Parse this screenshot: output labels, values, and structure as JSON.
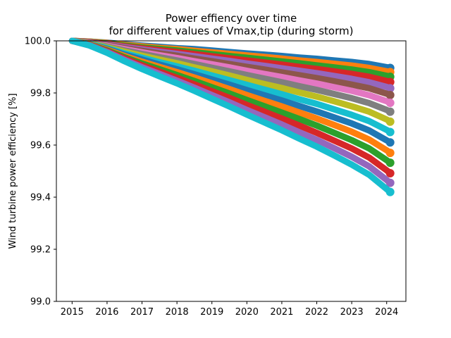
{
  "chart_data": {
    "type": "scatter",
    "title": "Power effiency over time",
    "subtitle": "for different values of Vmax,tip (during storm)",
    "xlabel": "",
    "ylabel": "Wind turbine power efficiency [%]",
    "xlim": [
      2014.55,
      2024.55
    ],
    "ylim": [
      99.0,
      100.0
    ],
    "xticks": [
      {
        "value": 2015,
        "label": "2015"
      },
      {
        "value": 2016,
        "label": "2016"
      },
      {
        "value": 2017,
        "label": "2017"
      },
      {
        "value": 2018,
        "label": "2018"
      },
      {
        "value": 2019,
        "label": "2019"
      },
      {
        "value": 2020,
        "label": "2020"
      },
      {
        "value": 2021,
        "label": "2021"
      },
      {
        "value": 2022,
        "label": "2022"
      },
      {
        "value": 2023,
        "label": "2023"
      },
      {
        "value": 2024,
        "label": "2024"
      }
    ],
    "yticks": [
      {
        "value": 99.0,
        "label": "99.0"
      },
      {
        "value": 99.2,
        "label": "99.2"
      },
      {
        "value": 99.4,
        "label": "99.4"
      },
      {
        "value": 99.6,
        "label": "99.6"
      },
      {
        "value": 99.8,
        "label": "99.8"
      },
      {
        "value": 100.0,
        "label": "100.0"
      }
    ],
    "grid": false,
    "legend": "none",
    "x": [
      2015.0,
      2015.5,
      2016.0,
      2016.5,
      2017.0,
      2017.5,
      2018.0,
      2018.5,
      2019.0,
      2019.5,
      2020.0,
      2020.5,
      2021.0,
      2021.5,
      2022.0,
      2022.5,
      2023.0,
      2023.5,
      2024.0,
      2024.1
    ],
    "series": [
      {
        "color": "#1f77b4",
        "values": [
          100.0,
          99.997,
          99.993,
          99.987,
          99.982,
          99.977,
          99.972,
          99.968,
          99.963,
          99.957,
          99.952,
          99.947,
          99.942,
          99.936,
          99.931,
          99.925,
          99.919,
          99.911,
          99.899,
          99.896
        ]
      },
      {
        "color": "#ff7f0e",
        "values": [
          100.0,
          99.997,
          99.992,
          99.985,
          99.979,
          99.973,
          99.968,
          99.962,
          99.956,
          99.95,
          99.944,
          99.938,
          99.932,
          99.925,
          99.919,
          99.912,
          99.905,
          99.896,
          99.883,
          99.88
        ]
      },
      {
        "color": "#2ca02c",
        "values": [
          100.0,
          99.996,
          99.99,
          99.982,
          99.975,
          99.969,
          99.963,
          99.956,
          99.949,
          99.942,
          99.935,
          99.928,
          99.921,
          99.914,
          99.906,
          99.898,
          99.89,
          99.88,
          99.866,
          99.862
        ]
      },
      {
        "color": "#d62728",
        "values": [
          100.0,
          99.995,
          99.988,
          99.979,
          99.971,
          99.964,
          99.957,
          99.949,
          99.941,
          99.933,
          99.925,
          99.917,
          99.909,
          99.9,
          99.892,
          99.883,
          99.873,
          99.862,
          99.846,
          99.842
        ]
      },
      {
        "color": "#9467bd",
        "values": [
          100.0,
          99.994,
          99.986,
          99.976,
          99.967,
          99.958,
          99.95,
          99.941,
          99.932,
          99.923,
          99.913,
          99.904,
          99.895,
          99.885,
          99.876,
          99.865,
          99.854,
          99.841,
          99.823,
          99.818
        ]
      },
      {
        "color": "#8c564b",
        "values": [
          100.0,
          99.993,
          99.984,
          99.972,
          99.962,
          99.952,
          99.943,
          99.932,
          99.922,
          99.911,
          99.9,
          99.89,
          99.879,
          99.868,
          99.857,
          99.845,
          99.832,
          99.818,
          99.797,
          99.792
        ]
      },
      {
        "color": "#e377c2",
        "values": [
          100.0,
          99.992,
          99.981,
          99.968,
          99.956,
          99.945,
          99.934,
          99.922,
          99.91,
          99.898,
          99.885,
          99.873,
          99.861,
          99.848,
          99.836,
          99.822,
          99.808,
          99.791,
          99.768,
          99.762
        ]
      },
      {
        "color": "#7f7f7f",
        "values": [
          100.0,
          99.991,
          99.978,
          99.963,
          99.95,
          99.937,
          99.925,
          99.911,
          99.897,
          99.883,
          99.869,
          99.855,
          99.841,
          99.826,
          99.812,
          99.796,
          99.78,
          99.761,
          99.735,
          99.728
        ]
      },
      {
        "color": "#bcbd22",
        "values": [
          100.0,
          99.99,
          99.975,
          99.958,
          99.943,
          99.928,
          99.914,
          99.898,
          99.883,
          99.867,
          99.85,
          99.834,
          99.819,
          99.802,
          99.786,
          99.768,
          99.749,
          99.728,
          99.698,
          99.69
        ]
      },
      {
        "color": "#17becf",
        "values": [
          100.0,
          99.988,
          99.972,
          99.952,
          99.935,
          99.918,
          99.902,
          99.885,
          99.867,
          99.849,
          99.831,
          99.813,
          99.795,
          99.776,
          99.758,
          99.737,
          99.716,
          99.692,
          99.658,
          99.65
        ]
      },
      {
        "color": "#1f77b4",
        "values": [
          100.0,
          99.987,
          99.969,
          99.947,
          99.928,
          99.909,
          99.891,
          99.872,
          99.852,
          99.832,
          99.811,
          99.791,
          99.771,
          99.75,
          99.729,
          99.706,
          99.683,
          99.656,
          99.618,
          99.61
        ]
      },
      {
        "color": "#ff7f0e",
        "values": [
          100.0,
          99.986,
          99.966,
          99.942,
          99.92,
          99.9,
          99.88,
          99.859,
          99.837,
          99.815,
          99.792,
          99.77,
          99.748,
          99.725,
          99.702,
          99.677,
          99.651,
          99.621,
          99.58,
          99.57
        ]
      },
      {
        "color": "#2ca02c",
        "values": [
          100.0,
          99.985,
          99.963,
          99.937,
          99.913,
          99.891,
          99.869,
          99.846,
          99.822,
          99.798,
          99.773,
          99.749,
          99.725,
          99.7,
          99.675,
          99.647,
          99.619,
          99.587,
          99.542,
          99.532
        ]
      },
      {
        "color": "#d62728",
        "values": [
          100.0,
          99.984,
          99.96,
          99.932,
          99.906,
          99.882,
          99.858,
          99.833,
          99.807,
          99.781,
          99.754,
          99.728,
          99.702,
          99.675,
          99.647,
          99.617,
          99.587,
          99.552,
          99.503,
          99.492
        ]
      },
      {
        "color": "#9467bd",
        "values": [
          100.0,
          99.983,
          99.957,
          99.927,
          99.899,
          99.873,
          99.847,
          99.82,
          99.792,
          99.764,
          99.735,
          99.707,
          99.679,
          99.649,
          99.62,
          99.588,
          99.555,
          99.518,
          99.466,
          99.455
        ]
      },
      {
        "color": "#17becf",
        "values": [
          100.0,
          99.982,
          99.954,
          99.922,
          99.892,
          99.864,
          99.837,
          99.808,
          99.778,
          99.748,
          99.717,
          99.687,
          99.657,
          99.625,
          99.594,
          99.56,
          99.525,
          99.486,
          99.431,
          99.42
        ]
      }
    ]
  }
}
